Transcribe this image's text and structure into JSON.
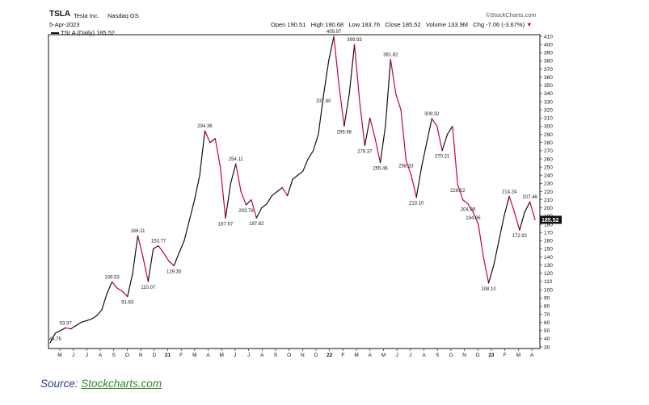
{
  "header": {
    "ticker": "TSLA",
    "company": "Tesla Inc.",
    "exchange": "Nasdaq GS",
    "date": "5-Apr-2023",
    "open": "Open 190.51",
    "high": "High 190.68",
    "low": "Low 183.76",
    "close": "Close 185.52",
    "volume": "Volume 133.9M",
    "chg": "Chg -7.06 (-3.67%)",
    "logo": "©StockCharts.com",
    "legend": "TSLA (Daily) 185.52"
  },
  "source": {
    "prefix": "Source: ",
    "link": "Stockcharts.com"
  },
  "colors": {
    "up": "#111111",
    "down": "#c8003c",
    "last_bg": "#111111",
    "source_text": "#2a3f8f",
    "source_link": "#2e8b2e"
  },
  "chart_data": {
    "type": "line",
    "title": "TSLA (Daily) 185.52",
    "y_range": [
      30,
      410
    ],
    "y_ticks": [
      30,
      40,
      50,
      60,
      70,
      80,
      90,
      100,
      110,
      120,
      130,
      140,
      150,
      160,
      170,
      180,
      190,
      200,
      210,
      220,
      230,
      240,
      250,
      260,
      270,
      280,
      290,
      300,
      310,
      320,
      330,
      340,
      350,
      360,
      370,
      380,
      390,
      400,
      410
    ],
    "x_ticks": [
      "M",
      "J",
      "J",
      "A",
      "S",
      "O",
      "N",
      "D",
      "21",
      "F",
      "M",
      "A",
      "M",
      "J",
      "J",
      "A",
      "S",
      "O",
      "N",
      "D",
      "22",
      "F",
      "M",
      "A",
      "M",
      "J",
      "J",
      "A",
      "S",
      "O",
      "N",
      "D",
      "23",
      "F",
      "M",
      "A"
    ],
    "year_ticks": [
      "21",
      "22",
      "23"
    ],
    "last_value": "185.52",
    "series": [
      {
        "values": [
          35,
          46.75,
          50,
          53.37,
          52,
          56,
          60,
          62,
          64,
          68,
          75,
          95,
          109.53,
          102,
          98,
          91.63,
          120,
          166.11,
          140,
          110.07,
          150,
          153.77,
          145,
          135,
          129.35,
          145,
          160,
          185,
          210,
          240,
          294.36,
          280,
          285,
          250,
          187.67,
          230,
          254.11,
          220,
          203.76,
          210,
          187.82,
          200,
          205,
          215,
          220,
          225,
          215,
          235,
          240,
          245,
          260,
          270,
          290,
          337.8,
          380,
          409.97,
          350,
          299.98,
          340,
          399.93,
          330,
          276.37,
          310,
          285,
          255.46,
          300,
          381.82,
          340,
          320,
          258.33,
          240,
          213.1,
          250,
          280,
          309.32,
          300,
          270.21,
          290,
          300,
          228.52,
          210,
          204.99,
          194.86,
          180,
          140,
          108.1,
          130,
          160,
          190,
          214.24,
          195,
          172.92,
          195,
          207.46,
          185.52
        ]
      }
    ],
    "annotations": [
      "46.75",
      "53.37",
      "109.53",
      "91.63",
      "166.11",
      "110.07",
      "153.77",
      "129.35",
      "294.36",
      "187.67",
      "254.11",
      "203.76",
      "187.82",
      "337.80",
      "409.97",
      "299.98",
      "399.93",
      "276.37",
      "381.82",
      "255.46",
      "258.33",
      "213.10",
      "309.32",
      "270.21",
      "228.52",
      "204.99",
      "194.86",
      "108.10",
      "214.24",
      "172.92",
      "207.46"
    ]
  }
}
